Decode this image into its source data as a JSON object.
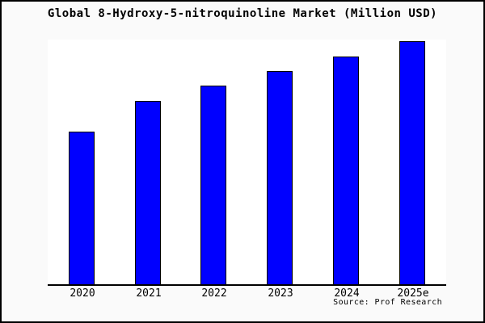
{
  "window": {
    "title": "Global 8-Hydroxy-5-nitroquinoline Market (Million USD)"
  },
  "chart_data": {
    "type": "bar",
    "title": "Global 8-Hydroxy-5-nitroquinoline Market (Million USD)",
    "categories": [
      "2020",
      "2021",
      "2022",
      "2023",
      "2024",
      "2025e"
    ],
    "values": [
      62.8,
      75.4,
      81.7,
      87.7,
      93.7,
      100.0
    ],
    "value_units": "relative index estimated from bar heights (no y-axis tick labels shown)",
    "xlabel": "",
    "ylabel": "",
    "ylim": [
      0,
      101
    ],
    "grid": false,
    "legend": null,
    "colors": {
      "bar_fill": "#0000ff",
      "bar_border": "#000000",
      "axis": "#000000",
      "figure_background": "#fafafa",
      "plot_background": "#ffffff",
      "text": "#000000"
    }
  },
  "source": {
    "label": "Source: Prof Research"
  }
}
